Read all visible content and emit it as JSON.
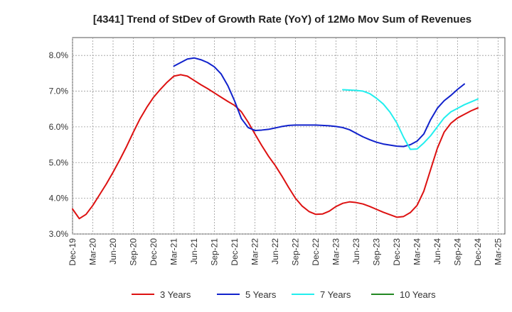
{
  "chart_data": {
    "type": "line",
    "title": "[4341]  Trend of StDev of Growth Rate (YoY) of 12Mo Mov Sum of Revenues",
    "xlabel": "",
    "ylabel": "",
    "ylim": [
      3.0,
      8.5
    ],
    "yticks": [
      3.0,
      4.0,
      5.0,
      6.0,
      7.0,
      8.0
    ],
    "ytick_labels": [
      "3.0%",
      "4.0%",
      "5.0%",
      "6.0%",
      "7.0%",
      "8.0%"
    ],
    "x_start": "Dec-19",
    "x_month_count": 64,
    "xtick_labels": [
      "Dec-19",
      "Mar-20",
      "Jun-20",
      "Sep-20",
      "Dec-20",
      "Mar-21",
      "Jun-21",
      "Sep-21",
      "Dec-21",
      "Mar-22",
      "Jun-22",
      "Sep-22",
      "Dec-22",
      "Mar-23",
      "Jun-23",
      "Sep-23",
      "Dec-23",
      "Mar-24",
      "Jun-24",
      "Sep-24",
      "Dec-24",
      "Mar-25"
    ],
    "grid": true,
    "legend_position": "bottom",
    "series": [
      {
        "name": "3 Years",
        "color": "#dd1111",
        "start_index": 0,
        "values": [
          3.7,
          3.43,
          3.55,
          3.8,
          4.1,
          4.4,
          4.73,
          5.08,
          5.45,
          5.85,
          6.23,
          6.55,
          6.83,
          7.05,
          7.25,
          7.42,
          7.46,
          7.42,
          7.3,
          7.18,
          7.07,
          6.95,
          6.83,
          6.71,
          6.6,
          6.42,
          6.13,
          5.8,
          5.48,
          5.18,
          4.92,
          4.62,
          4.3,
          4.0,
          3.78,
          3.63,
          3.55,
          3.56,
          3.64,
          3.77,
          3.86,
          3.9,
          3.88,
          3.84,
          3.77,
          3.69,
          3.61,
          3.54,
          3.47,
          3.49,
          3.6,
          3.8,
          4.2,
          4.8,
          5.4,
          5.85,
          6.1,
          6.25,
          6.35,
          6.45,
          6.53
        ]
      },
      {
        "name": "5 Years",
        "color": "#1122cc",
        "start_index": 15,
        "values": [
          7.7,
          7.8,
          7.9,
          7.93,
          7.88,
          7.8,
          7.68,
          7.48,
          7.15,
          6.72,
          6.23,
          5.98,
          5.9,
          5.91,
          5.93,
          5.97,
          6.01,
          6.04,
          6.05,
          6.05,
          6.05,
          6.05,
          6.04,
          6.03,
          6.01,
          5.98,
          5.92,
          5.82,
          5.72,
          5.64,
          5.57,
          5.52,
          5.49,
          5.46,
          5.45,
          5.5,
          5.6,
          5.8,
          6.2,
          6.52,
          6.73,
          6.88,
          7.05,
          7.2
        ]
      },
      {
        "name": "7 Years",
        "color": "#22eeee",
        "start_index": 40,
        "values": [
          7.04,
          7.03,
          7.02,
          7.0,
          6.93,
          6.8,
          6.64,
          6.41,
          6.11,
          5.71,
          5.37,
          5.38,
          5.55,
          5.75,
          6.0,
          6.25,
          6.42,
          6.52,
          6.62,
          6.7,
          6.78
        ]
      },
      {
        "name": "10 Years",
        "color": "#228822",
        "start_index": 0,
        "values": []
      }
    ]
  }
}
